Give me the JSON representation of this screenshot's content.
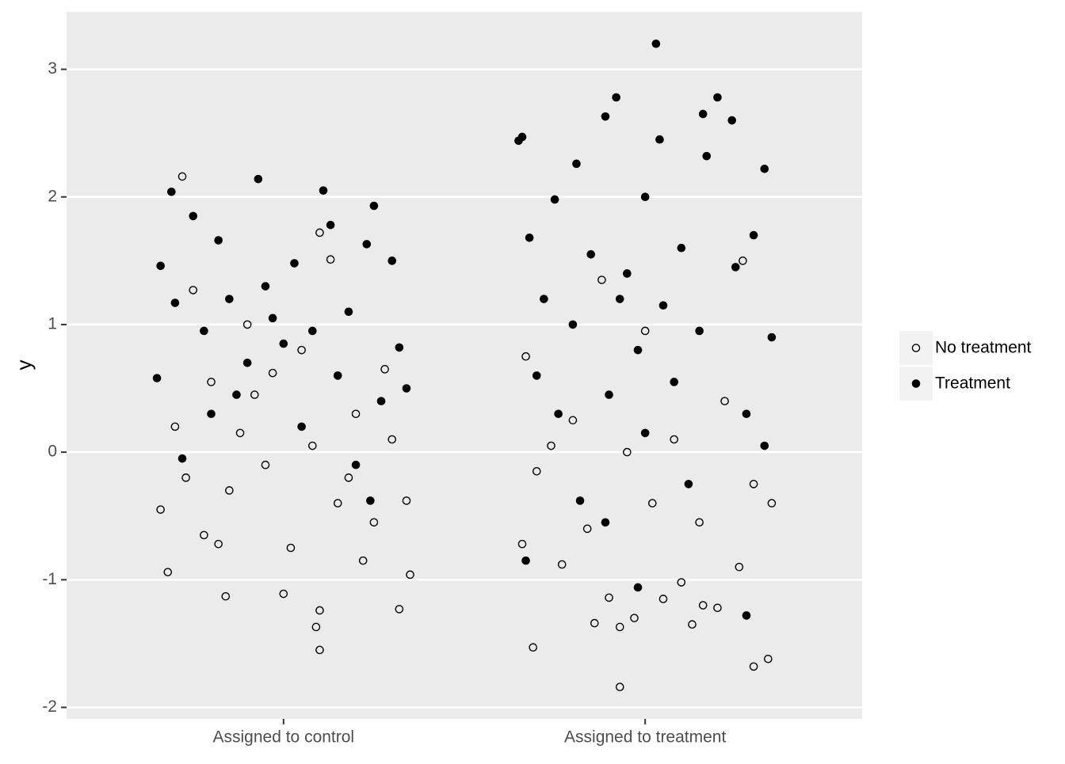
{
  "chart_data": {
    "type": "scatter",
    "y_label": "y",
    "xlim": [
      0.4,
      2.6
    ],
    "xticks": [
      {
        "value": 1,
        "label": "Assigned to control"
      },
      {
        "value": 2,
        "label": "Assigned to treatment"
      }
    ],
    "ylim": [
      -2.09,
      3.45
    ],
    "yticks": [
      -2,
      -1,
      0,
      1,
      2,
      3
    ],
    "grid": true,
    "legend": "right",
    "series": [
      {
        "name": "No treatment",
        "color": "#000000",
        "marker": "open",
        "x": [
          0.72,
          1.1,
          1.09,
          1.1,
          1.32,
          0.84,
          1.35,
          0.68,
          1.0,
          0.75,
          1.1,
          1.13,
          0.9,
          1.05,
          0.8,
          0.7,
          1.2,
          1.3,
          0.95,
          0.85,
          1.15,
          1.25,
          0.78,
          1.02,
          0.66,
          1.34,
          0.92,
          1.08,
          0.73,
          1.28,
          0.88,
          1.18,
          0.97,
          1.22,
          0.82,
          1.93,
          2.3,
          2.34,
          1.69,
          1.93,
          1.86,
          1.97,
          2.13,
          2.05,
          1.9,
          2.1,
          2.16,
          2.2,
          1.77,
          1.66,
          2.26,
          1.84,
          2.02,
          2.3,
          1.7,
          1.95,
          2.08,
          1.8,
          2.22,
          1.67,
          2.27,
          1.88,
          2.0,
          2.15,
          1.74,
          2.35
        ],
        "values": [
          2.16,
          -1.55,
          -1.37,
          -1.24,
          -1.23,
          -1.13,
          -0.96,
          -0.94,
          -1.11,
          1.27,
          1.72,
          1.51,
          1.0,
          0.8,
          0.55,
          0.2,
          0.3,
          0.1,
          -0.1,
          -0.3,
          -0.4,
          -0.55,
          -0.65,
          -0.75,
          -0.45,
          -0.38,
          0.45,
          0.05,
          -0.2,
          0.65,
          0.15,
          -0.2,
          0.62,
          -0.85,
          -0.72,
          -1.84,
          -1.68,
          -1.62,
          -1.53,
          -1.37,
          -1.34,
          -1.3,
          -1.35,
          -1.15,
          -1.14,
          -1.02,
          -1.2,
          -1.22,
          -0.88,
          -0.72,
          -0.9,
          -0.6,
          -0.4,
          -0.25,
          -0.15,
          0.0,
          0.1,
          0.25,
          0.4,
          0.75,
          1.5,
          1.35,
          0.95,
          -0.55,
          0.05,
          -0.4
        ]
      },
      {
        "name": "Treatment",
        "color": "#000000",
        "marker": "filled",
        "x": [
          0.93,
          1.11,
          0.69,
          1.25,
          0.75,
          1.13,
          0.82,
          0.66,
          1.03,
          1.23,
          0.95,
          1.3,
          0.7,
          0.85,
          1.18,
          0.78,
          1.0,
          1.32,
          0.9,
          1.15,
          0.65,
          1.27,
          0.8,
          1.05,
          0.72,
          1.2,
          1.34,
          0.97,
          0.87,
          1.24,
          1.08,
          2.03,
          1.92,
          1.89,
          2.2,
          2.24,
          2.16,
          1.65,
          1.66,
          2.04,
          2.33,
          1.81,
          2.17,
          1.75,
          2.0,
          1.68,
          2.3,
          1.85,
          2.1,
          1.95,
          2.25,
          1.72,
          2.05,
          1.8,
          2.15,
          1.98,
          2.35,
          1.7,
          2.08,
          1.9,
          2.28,
          1.76,
          2.0,
          1.67,
          1.98,
          2.28,
          1.89,
          2.33,
          1.82,
          2.12,
          1.93
        ],
        "values": [
          2.14,
          2.05,
          2.04,
          1.93,
          1.85,
          1.78,
          1.66,
          1.46,
          1.48,
          1.63,
          1.3,
          1.5,
          1.17,
          1.2,
          1.1,
          0.95,
          0.85,
          0.82,
          0.7,
          0.6,
          0.58,
          0.4,
          0.3,
          0.2,
          -0.05,
          -0.1,
          0.5,
          1.05,
          0.45,
          -0.38,
          0.95,
          3.2,
          2.78,
          2.63,
          2.78,
          2.6,
          2.65,
          2.44,
          2.47,
          2.45,
          2.22,
          2.26,
          2.32,
          1.98,
          2.0,
          1.68,
          1.7,
          1.55,
          1.6,
          1.4,
          1.45,
          1.2,
          1.15,
          1.0,
          0.95,
          0.8,
          0.9,
          0.6,
          0.55,
          0.45,
          0.3,
          0.3,
          0.15,
          -0.85,
          -1.06,
          -1.28,
          -0.55,
          0.05,
          -0.38,
          -0.25,
          1.2
        ]
      }
    ]
  }
}
